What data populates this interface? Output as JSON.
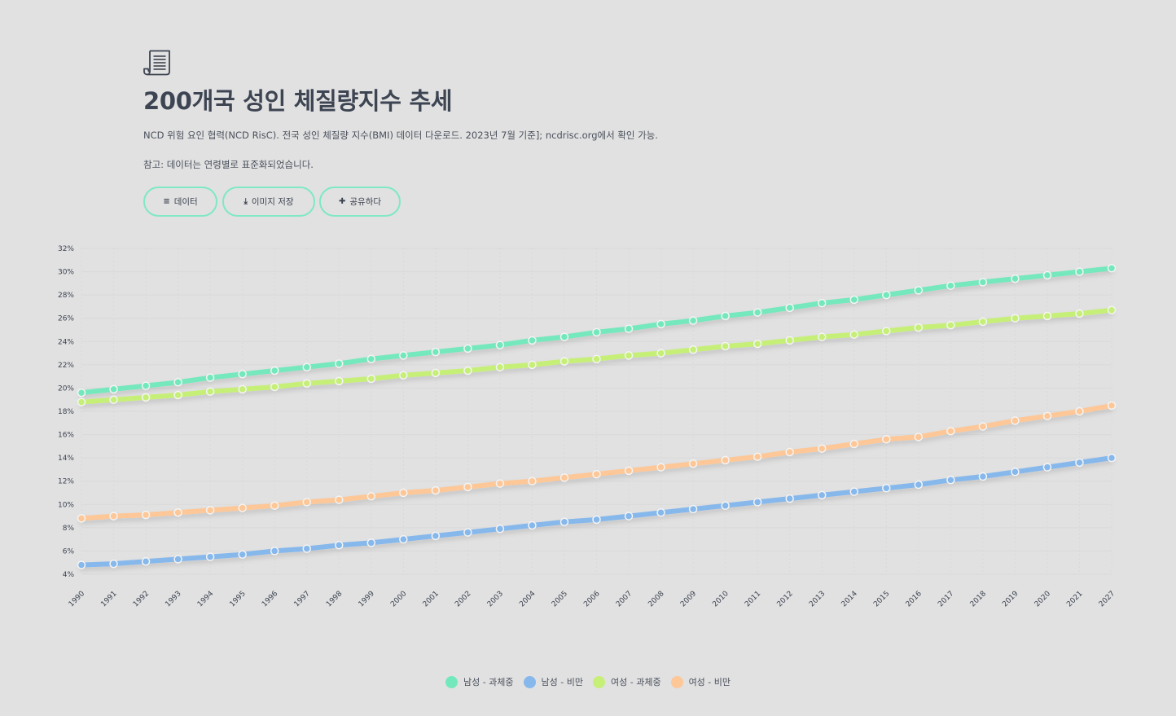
{
  "header": {
    "title": "200개국 성인 체질량지수 추세",
    "description": "NCD 위험 요인 협력(NCD RisC). 전국 성인 체질량 지수(BMI) 데이터 다운로드. 2023년 7월 기준]; ncdrisc.org에서 확인 가능.",
    "note": "참고: 데이터는 연령별로 표준화되었습니다."
  },
  "toolbar": {
    "data_label": "데이터",
    "data_icon": "≡",
    "save_label": "이미지 저장",
    "save_icon": "⤓",
    "share_label": "공유하다",
    "share_icon": "✚"
  },
  "colors": {
    "background": "#e1e1e1",
    "accent": "#7fe8c4",
    "male_overweight": "#74e8bd",
    "male_obese": "#86b8ec",
    "female_overweight": "#c6ef78",
    "female_obese": "#fdc797"
  },
  "chart_data": {
    "type": "line",
    "title": "200개국 성인 체질량지수 추세",
    "xlabel": "",
    "ylabel": "",
    "grid": true,
    "legend_position": "bottom",
    "ylim": [
      4,
      32
    ],
    "yticks": [
      "4%",
      "6%",
      "8%",
      "10%",
      "12%",
      "14%",
      "16%",
      "18%",
      "20%",
      "22%",
      "24%",
      "26%",
      "28%",
      "30%",
      "32%"
    ],
    "categories": [
      "1990",
      "1991",
      "1992",
      "1993",
      "1994",
      "1995",
      "1996",
      "1997",
      "1998",
      "1999",
      "2000",
      "2001",
      "2002",
      "2003",
      "2004",
      "2005",
      "2006",
      "2007",
      "2008",
      "2009",
      "2010",
      "2011",
      "2012",
      "2013",
      "2014",
      "2015",
      "2016",
      "2017",
      "2018",
      "2019",
      "2020",
      "2021",
      "2027"
    ],
    "series": [
      {
        "name": "남성 - 과체중",
        "color_key": "male_overweight",
        "values": [
          19.6,
          19.9,
          20.2,
          20.5,
          20.9,
          21.2,
          21.5,
          21.8,
          22.1,
          22.5,
          22.8,
          23.1,
          23.4,
          23.7,
          24.1,
          24.4,
          24.8,
          25.1,
          25.5,
          25.8,
          26.2,
          26.5,
          26.9,
          27.3,
          27.6,
          28.0,
          28.4,
          28.8,
          29.1,
          29.4,
          29.7,
          30.0,
          30.3
        ]
      },
      {
        "name": "남성 - 비만",
        "color_key": "male_obese",
        "values": [
          4.8,
          4.9,
          5.1,
          5.3,
          5.5,
          5.7,
          6.0,
          6.2,
          6.5,
          6.7,
          7.0,
          7.3,
          7.6,
          7.9,
          8.2,
          8.5,
          8.7,
          9.0,
          9.3,
          9.6,
          9.9,
          10.2,
          10.5,
          10.8,
          11.1,
          11.4,
          11.7,
          12.1,
          12.4,
          12.8,
          13.2,
          13.6,
          14.0
        ]
      },
      {
        "name": "여성 - 과체중",
        "color_key": "female_overweight",
        "values": [
          18.8,
          19.0,
          19.2,
          19.4,
          19.7,
          19.9,
          20.1,
          20.4,
          20.6,
          20.8,
          21.1,
          21.3,
          21.5,
          21.8,
          22.0,
          22.3,
          22.5,
          22.8,
          23.0,
          23.3,
          23.6,
          23.8,
          24.1,
          24.4,
          24.6,
          24.9,
          25.2,
          25.4,
          25.7,
          26.0,
          26.2,
          26.4,
          26.7
        ]
      },
      {
        "name": "여성 - 비만",
        "color_key": "female_obese",
        "values": [
          8.8,
          9.0,
          9.1,
          9.3,
          9.5,
          9.7,
          9.9,
          10.2,
          10.4,
          10.7,
          11.0,
          11.2,
          11.5,
          11.8,
          12.0,
          12.3,
          12.6,
          12.9,
          13.2,
          13.5,
          13.8,
          14.1,
          14.5,
          14.8,
          15.2,
          15.6,
          15.8,
          16.3,
          16.7,
          17.2,
          17.6,
          18.0,
          18.5
        ]
      }
    ]
  }
}
